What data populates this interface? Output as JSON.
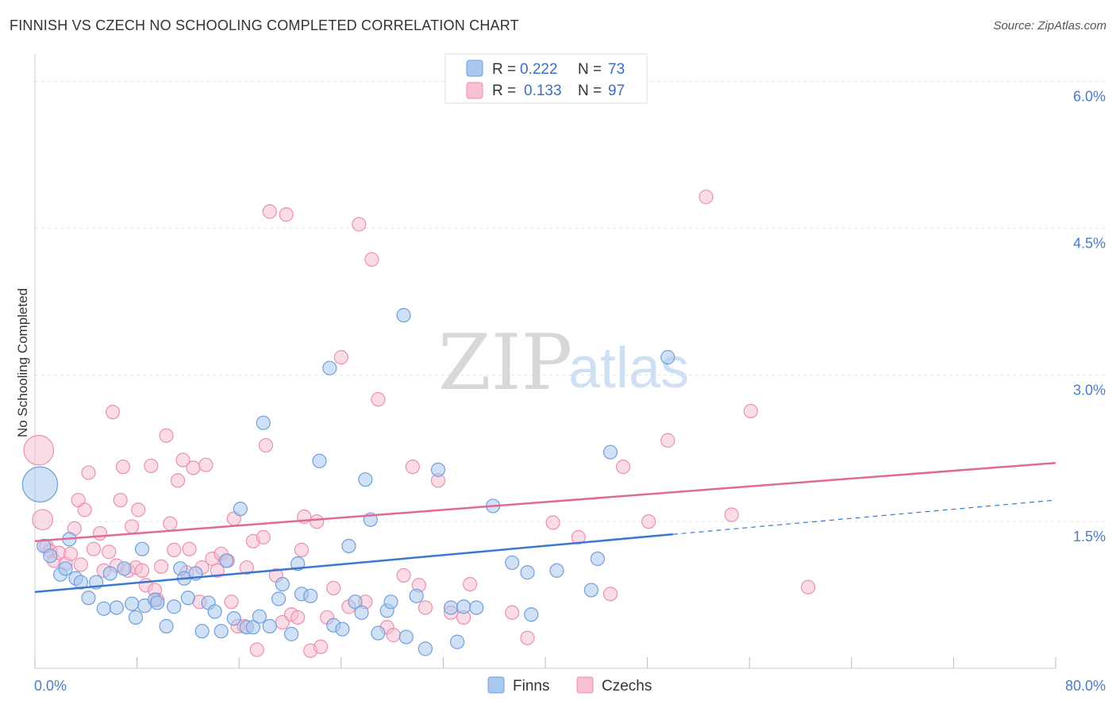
{
  "title": "FINNISH VS CZECH NO SCHOOLING COMPLETED CORRELATION CHART",
  "source": "Source: ZipAtlas.com",
  "watermark": {
    "zip": "ZIP",
    "atlas": "atlas"
  },
  "colors": {
    "finns_fill": "#a9c8ef",
    "finns_stroke": "#6f9fdc",
    "finns_line": "#3a78d0",
    "czechs_fill": "#f6bfd2",
    "czechs_stroke": "#ec8fb0",
    "czechs_line": "#e0699a",
    "tick_text": "#4a7cc7",
    "grid": "#e3e3e3"
  },
  "legend_top": {
    "rows": [
      {
        "r_label": "R =",
        "r_value": "0.222",
        "n_label": "N =",
        "n_value": "73"
      },
      {
        "r_label": "R =",
        "r_value": "0.133",
        "n_label": "N =",
        "n_value": "97"
      }
    ]
  },
  "legend_bottom": {
    "finns": "Finns",
    "czechs": "Czechs"
  },
  "chart_data": {
    "type": "scatter",
    "title": "FINNISH VS CZECH NO SCHOOLING COMPLETED CORRELATION CHART",
    "xlabel": "",
    "ylabel": "No Schooling Completed",
    "xlim": [
      0,
      80
    ],
    "ylim": [
      0,
      6.2
    ],
    "x_tick_labels": [
      "0.0%",
      "80.0%"
    ],
    "y_ticks": [
      1.5,
      3.0,
      4.5,
      6.0
    ],
    "y_tick_labels": [
      "1.5%",
      "3.0%",
      "4.5%",
      "6.0%"
    ],
    "grid": true,
    "legend_position": "top-center",
    "series": [
      {
        "name": "Finns",
        "r": 0.222,
        "n": 73,
        "trend": {
          "x0": 0,
          "y0": 0.78,
          "x1": 50,
          "y1": 1.37,
          "dashed_to_x": 80,
          "dashed_to_y": 1.72
        },
        "points": [
          [
            0.4,
            1.88,
            2.6
          ],
          [
            0.7,
            1.25,
            1
          ],
          [
            1.2,
            1.15,
            1
          ],
          [
            2.0,
            0.96,
            1
          ],
          [
            2.4,
            1.02,
            1
          ],
          [
            2.7,
            1.32,
            1
          ],
          [
            3.2,
            0.92,
            1
          ],
          [
            3.6,
            0.88,
            1
          ],
          [
            4.2,
            0.72,
            1
          ],
          [
            4.8,
            0.88,
            1
          ],
          [
            5.4,
            0.61,
            1
          ],
          [
            5.9,
            0.97,
            1
          ],
          [
            6.4,
            0.62,
            1
          ],
          [
            7.0,
            1.02,
            1
          ],
          [
            7.6,
            0.66,
            1
          ],
          [
            7.9,
            0.52,
            1
          ],
          [
            8.4,
            1.22,
            1
          ],
          [
            8.6,
            0.64,
            1
          ],
          [
            9.4,
            0.7,
            1
          ],
          [
            9.6,
            0.67,
            1
          ],
          [
            10.3,
            0.43,
            1
          ],
          [
            10.9,
            0.63,
            1
          ],
          [
            11.4,
            1.02,
            1
          ],
          [
            11.7,
            0.92,
            1
          ],
          [
            12.0,
            0.72,
            1
          ],
          [
            12.6,
            0.97,
            1
          ],
          [
            13.1,
            0.38,
            1
          ],
          [
            13.6,
            0.67,
            1
          ],
          [
            14.1,
            0.58,
            1
          ],
          [
            14.6,
            0.38,
            1
          ],
          [
            15.0,
            1.1,
            1
          ],
          [
            15.6,
            0.51,
            1
          ],
          [
            16.1,
            1.63,
            1
          ],
          [
            16.6,
            0.42,
            1
          ],
          [
            17.1,
            0.42,
            1
          ],
          [
            17.6,
            0.53,
            1
          ],
          [
            17.9,
            2.51,
            1
          ],
          [
            18.4,
            0.43,
            1
          ],
          [
            19.1,
            0.71,
            1
          ],
          [
            19.4,
            0.86,
            1
          ],
          [
            20.1,
            0.35,
            1
          ],
          [
            20.6,
            1.07,
            1
          ],
          [
            20.9,
            0.76,
            1
          ],
          [
            21.6,
            0.74,
            1
          ],
          [
            22.3,
            2.12,
            1
          ],
          [
            23.1,
            3.07,
            1
          ],
          [
            23.4,
            0.44,
            1
          ],
          [
            24.1,
            0.4,
            1
          ],
          [
            24.6,
            1.25,
            1
          ],
          [
            25.1,
            0.68,
            1
          ],
          [
            25.6,
            0.57,
            1
          ],
          [
            25.9,
            1.93,
            1
          ],
          [
            26.3,
            1.52,
            1
          ],
          [
            26.9,
            0.36,
            1
          ],
          [
            27.6,
            0.59,
            1
          ],
          [
            27.9,
            0.68,
            1
          ],
          [
            28.9,
            3.61,
            1
          ],
          [
            29.1,
            0.32,
            1
          ],
          [
            29.9,
            0.74,
            1
          ],
          [
            30.6,
            0.2,
            1
          ],
          [
            31.6,
            2.03,
            1
          ],
          [
            32.6,
            0.62,
            1
          ],
          [
            33.1,
            0.27,
            1
          ],
          [
            33.6,
            0.63,
            1
          ],
          [
            34.6,
            0.62,
            1
          ],
          [
            35.9,
            1.66,
            1
          ],
          [
            37.4,
            1.08,
            1
          ],
          [
            38.6,
            0.98,
            1
          ],
          [
            38.9,
            0.55,
            1
          ],
          [
            40.9,
            1.0,
            1
          ],
          [
            43.6,
            0.8,
            1
          ],
          [
            44.1,
            1.12,
            1
          ],
          [
            45.1,
            2.21,
            1
          ],
          [
            49.6,
            3.18,
            1
          ]
        ]
      },
      {
        "name": "Czechs",
        "r": 0.133,
        "n": 97,
        "trend": {
          "x0": 0,
          "y0": 1.3,
          "x1": 80,
          "y1": 2.1
        },
        "points": [
          [
            0.3,
            2.23,
            2.2
          ],
          [
            0.6,
            1.52,
            1.5
          ],
          [
            0.9,
            1.25,
            1
          ],
          [
            1.2,
            1.2,
            1
          ],
          [
            1.5,
            1.1,
            1
          ],
          [
            1.9,
            1.18,
            1
          ],
          [
            2.4,
            1.07,
            1
          ],
          [
            2.8,
            1.17,
            1
          ],
          [
            3.1,
            1.43,
            1
          ],
          [
            3.4,
            1.72,
            1
          ],
          [
            3.6,
            1.06,
            1
          ],
          [
            3.9,
            1.62,
            1
          ],
          [
            4.2,
            2.0,
            1
          ],
          [
            4.6,
            1.22,
            1
          ],
          [
            5.1,
            1.38,
            1
          ],
          [
            5.4,
            1.0,
            1
          ],
          [
            5.8,
            1.19,
            1
          ],
          [
            6.1,
            2.62,
            1
          ],
          [
            6.4,
            1.05,
            1
          ],
          [
            6.7,
            1.72,
            1
          ],
          [
            6.9,
            2.06,
            1
          ],
          [
            7.3,
            1.0,
            1
          ],
          [
            7.6,
            1.45,
            1
          ],
          [
            7.9,
            1.03,
            1
          ],
          [
            8.1,
            1.62,
            1
          ],
          [
            8.4,
            1.0,
            1
          ],
          [
            8.7,
            0.85,
            1
          ],
          [
            9.1,
            2.07,
            1
          ],
          [
            9.4,
            0.8,
            1
          ],
          [
            9.6,
            0.7,
            1
          ],
          [
            9.9,
            1.04,
            1
          ],
          [
            10.3,
            2.38,
            1
          ],
          [
            10.6,
            1.48,
            1
          ],
          [
            10.9,
            1.21,
            1
          ],
          [
            11.2,
            1.92,
            1
          ],
          [
            11.6,
            2.13,
            1
          ],
          [
            11.9,
            0.98,
            1
          ],
          [
            12.1,
            1.22,
            1
          ],
          [
            12.4,
            2.05,
            1
          ],
          [
            12.9,
            0.68,
            1
          ],
          [
            13.1,
            1.03,
            1
          ],
          [
            13.4,
            2.08,
            1
          ],
          [
            13.9,
            1.12,
            1
          ],
          [
            14.3,
            1.0,
            1
          ],
          [
            14.6,
            1.17,
            1
          ],
          [
            15.1,
            1.1,
            1
          ],
          [
            15.4,
            0.68,
            1
          ],
          [
            15.6,
            1.53,
            1
          ],
          [
            15.9,
            0.43,
            1
          ],
          [
            16.4,
            0.43,
            1
          ],
          [
            16.6,
            1.03,
            1
          ],
          [
            17.1,
            1.3,
            1
          ],
          [
            17.4,
            0.19,
            1
          ],
          [
            17.9,
            1.34,
            1
          ],
          [
            18.1,
            2.28,
            1
          ],
          [
            18.4,
            4.67,
            1
          ],
          [
            18.9,
            0.95,
            1
          ],
          [
            19.4,
            0.47,
            1
          ],
          [
            19.7,
            4.64,
            1
          ],
          [
            20.1,
            0.55,
            1
          ],
          [
            20.6,
            0.52,
            1
          ],
          [
            20.9,
            1.21,
            1
          ],
          [
            21.1,
            1.55,
            1
          ],
          [
            21.6,
            0.18,
            1
          ],
          [
            22.1,
            1.5,
            1
          ],
          [
            22.4,
            0.22,
            1
          ],
          [
            22.9,
            0.52,
            1
          ],
          [
            23.4,
            0.82,
            1
          ],
          [
            24.0,
            3.18,
            1
          ],
          [
            24.6,
            0.63,
            1
          ],
          [
            25.4,
            4.54,
            1
          ],
          [
            25.9,
            0.68,
            1
          ],
          [
            26.4,
            4.18,
            1
          ],
          [
            26.9,
            2.75,
            1
          ],
          [
            27.6,
            0.42,
            1
          ],
          [
            28.1,
            0.34,
            1
          ],
          [
            28.9,
            0.95,
            1
          ],
          [
            29.6,
            2.06,
            1
          ],
          [
            30.1,
            0.85,
            1
          ],
          [
            30.6,
            0.62,
            1
          ],
          [
            31.6,
            1.92,
            1
          ],
          [
            32.6,
            0.57,
            1
          ],
          [
            33.6,
            0.52,
            1
          ],
          [
            34.1,
            0.86,
            1
          ],
          [
            37.4,
            0.57,
            1
          ],
          [
            38.6,
            0.31,
            1
          ],
          [
            40.6,
            1.49,
            1
          ],
          [
            42.6,
            1.34,
            1
          ],
          [
            45.1,
            0.76,
            1
          ],
          [
            46.1,
            2.06,
            1
          ],
          [
            48.1,
            1.5,
            1
          ],
          [
            49.6,
            2.33,
            1
          ],
          [
            52.6,
            4.82,
            1
          ],
          [
            54.6,
            1.57,
            1
          ],
          [
            56.1,
            2.63,
            1
          ],
          [
            60.6,
            0.83,
            1
          ]
        ]
      }
    ]
  }
}
